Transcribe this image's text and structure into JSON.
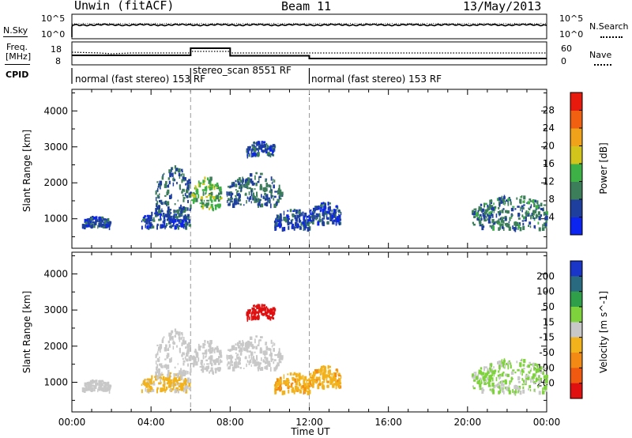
{
  "header": {
    "station": "Unwin (fitACF)",
    "beam": "Beam 11",
    "date": "13/May/2013"
  },
  "noise_panel": {
    "left_label": "N.Sky",
    "left_ticks": [
      "10^5",
      "10^0"
    ],
    "right_label": "N.Search",
    "right_ticks": [
      "10^5",
      "10^0"
    ]
  },
  "freq_panel": {
    "left_label_line1": "Freq.",
    "left_label_line2": "[MHz]",
    "left_ticks": [
      "18",
      "8"
    ],
    "right_label": "Nave",
    "right_ticks": [
      "60",
      "0"
    ]
  },
  "cpid": {
    "label": "CPID",
    "segments": [
      {
        "text": "normal (fast stereo) 153 RF",
        "start_h": 0,
        "end_h": 6
      },
      {
        "text": "stereo_scan 8551 RF",
        "start_h": 6,
        "end_h": 12
      },
      {
        "text": "normal (fast stereo) 153 RF",
        "start_h": 12,
        "end_h": 24
      }
    ]
  },
  "x_axis": {
    "label": "Time UT",
    "ticks": [
      "00:00",
      "04:00",
      "08:00",
      "12:00",
      "16:00",
      "20:00",
      "00:00"
    ]
  },
  "power_panel": {
    "ylabel": "Slant Range [km]",
    "yticks": [
      "4000",
      "3000",
      "2000",
      "1000"
    ],
    "colorbar_label": "Power [dB]",
    "colorbar_ticks": [
      "28",
      "24",
      "20",
      "16",
      "12",
      "8",
      "4"
    ],
    "colors": [
      "#0b24f0",
      "#1f3f9e",
      "#3c7d5a",
      "#3db046",
      "#d2c41b",
      "#f0a21a",
      "#f06010",
      "#e81a0d"
    ]
  },
  "velocity_panel": {
    "ylabel": "Slant Range [km]",
    "yticks": [
      "4000",
      "3000",
      "2000",
      "1000"
    ],
    "colorbar_label": "Velocity [m s^-1]",
    "colorbar_ticks": [
      "200",
      "100",
      "50",
      "15",
      "-15",
      "-50",
      "-100",
      "-200"
    ],
    "colors": [
      "#1a36c8",
      "#2a6a80",
      "#2f9f4a",
      "#7ed23c",
      "#c8c8c8",
      "#f2b21c",
      "#f28a14",
      "#ef5a10",
      "#e01010"
    ]
  },
  "chart_data": {
    "type": "heatmap",
    "title": "Unwin (fitACF) Beam 11 13/May/2013",
    "xlabel": "Time UT",
    "ylabel": "Slant Range [km]",
    "xlim": [
      0,
      24
    ],
    "ylim": [
      180,
      4600
    ],
    "cpid_change_times_h": [
      6,
      12
    ],
    "power_dB_range": [
      0,
      32
    ],
    "velocity_range": [
      -250,
      250
    ],
    "scatter_regions": [
      {
        "t_start": 0.5,
        "t_end": 1.9,
        "range_min": 800,
        "range_max": 1100,
        "power_dB": 6,
        "velocity": 0
      },
      {
        "t_start": 3.5,
        "t_end": 5.9,
        "range_min": 800,
        "range_max": 1300,
        "power_dB": 6,
        "velocity": -20
      },
      {
        "t_start": 4.2,
        "t_end": 6.0,
        "range_min": 1200,
        "range_max": 2500,
        "power_dB": 8,
        "velocity": 0
      },
      {
        "t_start": 6.0,
        "t_end": 7.5,
        "range_min": 1300,
        "range_max": 2200,
        "power_dB": 14,
        "velocity": 0
      },
      {
        "t_start": 7.8,
        "t_end": 10.6,
        "range_min": 1400,
        "range_max": 2300,
        "power_dB": 8,
        "velocity": 0
      },
      {
        "t_start": 8.8,
        "t_end": 10.2,
        "range_min": 2800,
        "range_max": 3200,
        "power_dB": 6,
        "velocity": -220
      },
      {
        "t_start": 10.2,
        "t_end": 12.0,
        "range_min": 750,
        "range_max": 1300,
        "power_dB": 6,
        "velocity": -40
      },
      {
        "t_start": 12.0,
        "t_end": 13.6,
        "range_min": 900,
        "range_max": 1500,
        "power_dB": 6,
        "velocity": -40
      },
      {
        "t_start": 20.2,
        "t_end": 24.0,
        "range_min": 750,
        "range_max": 1700,
        "power_dB": 9,
        "velocity": 20
      }
    ]
  }
}
